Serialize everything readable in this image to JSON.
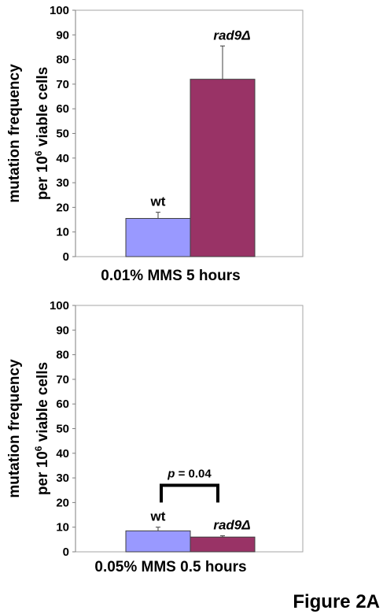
{
  "figure_label": "Figure 2A",
  "chart_data": [
    {
      "type": "bar",
      "ylabel_line1": "mutation frequency",
      "ylabel_line2": "per 10",
      "ylabel_sup": "6",
      "ylabel_line2_end": " viable cells",
      "ylim": [
        0,
        100
      ],
      "yticks": [
        0,
        10,
        20,
        30,
        40,
        50,
        60,
        70,
        80,
        90,
        100
      ],
      "category": "0.01% MMS 5 hours",
      "grid": false,
      "series": [
        {
          "name": "wt",
          "label_italic": false,
          "value": 15.5,
          "error": 2.5,
          "color": "#9999ff"
        },
        {
          "name": "rad9Δ",
          "label_italic": true,
          "value": 72,
          "error": 13.5,
          "color": "#993366"
        }
      ]
    },
    {
      "type": "bar",
      "ylabel_line1": "mutation frequency",
      "ylabel_line2": "per 10",
      "ylabel_sup": "6",
      "ylabel_line2_end": " viable cells",
      "ylim": [
        0,
        100
      ],
      "yticks": [
        0,
        10,
        20,
        30,
        40,
        50,
        60,
        70,
        80,
        90,
        100
      ],
      "category": "0.05% MMS 0.5 hours",
      "grid": false,
      "annotation": {
        "p_symbol": "p",
        "p_text": " = 0.04"
      },
      "series": [
        {
          "name": "wt",
          "label_italic": false,
          "value": 8.5,
          "error": 1.5,
          "color": "#9999ff"
        },
        {
          "name": "rad9Δ",
          "label_italic": true,
          "value": 6,
          "error": 0.5,
          "color": "#993366"
        }
      ]
    }
  ]
}
